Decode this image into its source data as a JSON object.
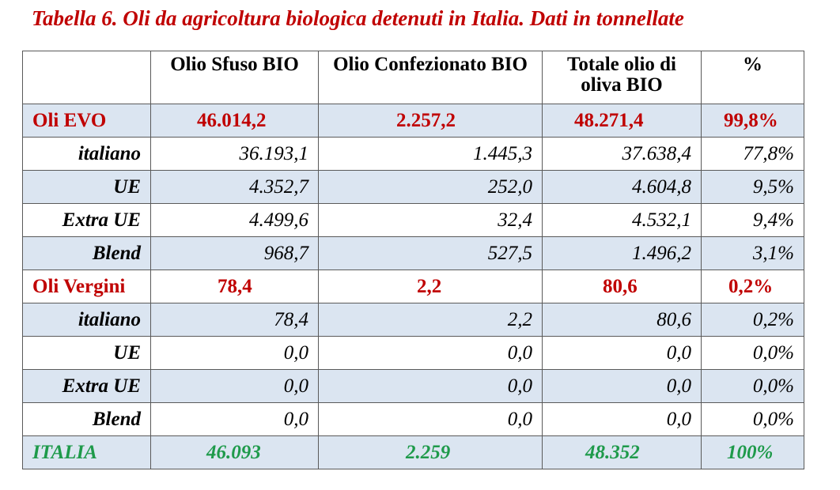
{
  "title": "Tabella 6. Oli da agricoltura biologica detenuti in Italia. Dati in tonnellate",
  "headers": [
    "",
    "Olio Sfuso BIO",
    "Olio Confezionato BIO",
    "Totale olio di oliva BIO",
    "%"
  ],
  "rows": [
    {
      "label": "Oli EVO",
      "cells": [
        "46.014,2",
        "2.257,2",
        "48.271,4",
        "99,8%"
      ]
    },
    {
      "label": "italiano",
      "cells": [
        "36.193,1",
        "1.445,3",
        "37.638,4",
        "77,8%"
      ]
    },
    {
      "label": "UE",
      "cells": [
        "4.352,7",
        "252,0",
        "4.604,8",
        "9,5%"
      ]
    },
    {
      "label": "Extra UE",
      "cells": [
        "4.499,6",
        "32,4",
        "4.532,1",
        "9,4%"
      ]
    },
    {
      "label": "Blend",
      "cells": [
        "968,7",
        "527,5",
        "1.496,2",
        "3,1%"
      ]
    },
    {
      "label": "Oli Vergini",
      "cells": [
        "78,4",
        "2,2",
        "80,6",
        "0,2%"
      ]
    },
    {
      "label": "italiano",
      "cells": [
        "78,4",
        "2,2",
        "80,6",
        "0,2%"
      ]
    },
    {
      "label": "UE",
      "cells": [
        "0,0",
        "0,0",
        "0,0",
        "0,0%"
      ]
    },
    {
      "label": "Extra UE",
      "cells": [
        "0,0",
        "0,0",
        "0,0",
        "0,0%"
      ]
    },
    {
      "label": "Blend",
      "cells": [
        "0,0",
        "0,0",
        "0,0",
        "0,0%"
      ]
    },
    {
      "label": "ITALIA",
      "cells": [
        "46.093",
        "2.259",
        "48.352",
        "100%"
      ]
    }
  ],
  "colors": {
    "title": "#c00000",
    "group": "#c00000",
    "total": "#1e9a4a",
    "shade": "#dbe5f1"
  }
}
